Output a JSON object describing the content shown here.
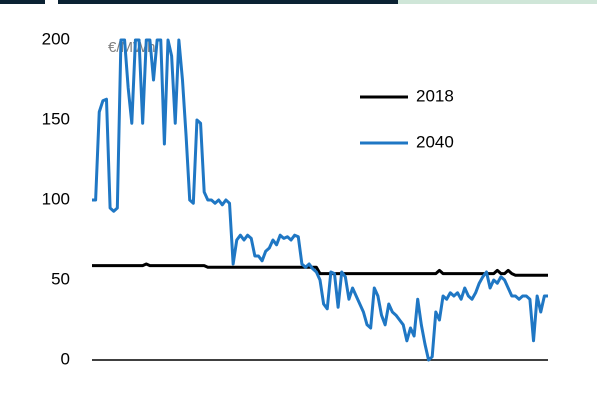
{
  "chart_data": {
    "type": "line",
    "unit_label": "€/MWh",
    "ylim": [
      0,
      200
    ],
    "yticks": [
      0,
      50,
      100,
      150,
      200
    ],
    "grid": false,
    "legend": "upper right",
    "series": [
      {
        "name": "2018",
        "color": "#000000",
        "values": [
          59,
          59,
          59,
          59,
          59,
          59,
          59,
          59,
          59,
          59,
          59,
          59,
          59,
          59,
          59,
          60,
          59,
          59,
          59,
          59,
          59,
          59,
          59,
          59,
          59,
          59,
          59,
          59,
          59,
          59,
          59,
          59,
          58,
          58,
          58,
          58,
          58,
          58,
          58,
          58,
          58,
          58,
          58,
          58,
          58,
          58,
          58,
          58,
          58,
          58,
          58,
          58,
          58,
          58,
          58,
          58,
          58,
          58,
          58,
          58,
          58,
          58,
          58,
          54,
          54,
          54,
          54,
          54,
          54,
          54,
          54,
          54,
          54,
          54,
          54,
          54,
          54,
          54,
          54,
          54,
          54,
          54,
          54,
          54,
          54,
          54,
          54,
          54,
          54,
          54,
          54,
          54,
          54,
          54,
          54,
          54,
          56,
          54,
          54,
          54,
          54,
          54,
          54,
          54,
          54,
          54,
          54,
          54,
          54,
          54,
          54,
          54,
          56,
          54,
          54,
          56,
          54,
          53,
          53,
          53,
          53,
          53,
          53,
          53,
          53,
          53,
          53
        ]
      },
      {
        "name": "2040",
        "color": "#1f77c4",
        "values": [
          100,
          100,
          155,
          162,
          163,
          95,
          93,
          95,
          200,
          200,
          170,
          148,
          200,
          200,
          148,
          200,
          200,
          175,
          200,
          200,
          135,
          200,
          190,
          148,
          200,
          175,
          140,
          100,
          98,
          150,
          148,
          105,
          100,
          100,
          98,
          100,
          97,
          100,
          98,
          60,
          75,
          78,
          75,
          78,
          76,
          65,
          65,
          62,
          68,
          70,
          75,
          72,
          78,
          76,
          77,
          75,
          78,
          77,
          60,
          58,
          60,
          57,
          55,
          50,
          35,
          32,
          55,
          54,
          33,
          55,
          52,
          38,
          45,
          40,
          35,
          30,
          22,
          20,
          45,
          40,
          28,
          22,
          35,
          30,
          28,
          25,
          22,
          12,
          20,
          15,
          38,
          22,
          10,
          0,
          2,
          30,
          25,
          40,
          38,
          42,
          40,
          42,
          38,
          45,
          40,
          38,
          42,
          48,
          52,
          55,
          45,
          50,
          48,
          52,
          50,
          45,
          40,
          40,
          38,
          40,
          40,
          38,
          12,
          40,
          30,
          40,
          40
        ]
      }
    ]
  }
}
